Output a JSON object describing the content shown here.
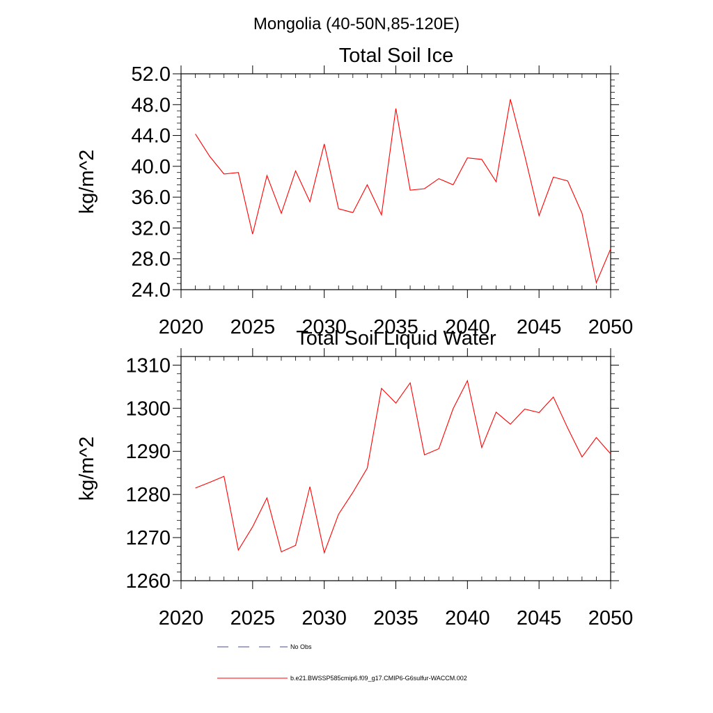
{
  "figure": {
    "suptitle": "Mongolia (40-50N,85-120E)"
  },
  "legend": {
    "items": [
      {
        "label": "No Obs",
        "style": "dashed",
        "color": "#4a4a8a"
      },
      {
        "label": "b.e21.BWSSP585cmip6.f09_g17.CMIP6-G6sulfur-WACCM.002",
        "style": "solid",
        "color": "#ff0000"
      }
    ]
  },
  "chart_data": [
    {
      "type": "line",
      "title": "Total Soil Ice",
      "xlabel": "",
      "ylabel": "kg/m^2",
      "xlim": [
        2020,
        2050
      ],
      "ylim": [
        24,
        52
      ],
      "xticks": [
        2020,
        2025,
        2030,
        2035,
        2040,
        2045,
        2050
      ],
      "yticks": [
        24,
        28,
        32,
        36,
        40,
        44,
        48,
        52
      ],
      "ytick_labels": [
        "24.0",
        "28.0",
        "32.0",
        "36.0",
        "40.0",
        "44.0",
        "48.0",
        "52.0"
      ],
      "x_minor_step": 1,
      "y_minor_step": 0.8,
      "series": [
        {
          "color": "#ff0000",
          "x": [
            2021,
            2022,
            2023,
            2024,
            2025,
            2026,
            2027,
            2028,
            2029,
            2030,
            2031,
            2032,
            2033,
            2034,
            2035,
            2036,
            2037,
            2038,
            2039,
            2040,
            2041,
            2042,
            2043,
            2044,
            2045,
            2046,
            2047,
            2048,
            2049,
            2050
          ],
          "values": [
            44.2,
            41.3,
            39.0,
            39.2,
            31.2,
            38.8,
            33.9,
            39.4,
            35.4,
            42.9,
            34.5,
            34.0,
            37.6,
            33.7,
            47.5,
            36.9,
            37.1,
            38.4,
            37.6,
            41.1,
            40.9,
            38.0,
            48.7,
            41.4,
            33.6,
            38.6,
            38.1,
            33.9,
            24.9,
            29.3
          ]
        }
      ]
    },
    {
      "type": "line",
      "title": "Total Soil Liquid Water",
      "xlabel": "",
      "ylabel": "kg/m^2",
      "xlim": [
        2020,
        2050
      ],
      "ylim": [
        1260,
        1312
      ],
      "xticks": [
        2020,
        2025,
        2030,
        2035,
        2040,
        2045,
        2050
      ],
      "yticks": [
        1260,
        1270,
        1280,
        1290,
        1300,
        1310
      ],
      "ytick_labels": [
        "1260",
        "1270",
        "1280",
        "1290",
        "1300",
        "1310"
      ],
      "x_minor_step": 1,
      "y_minor_step": 2,
      "series": [
        {
          "color": "#ff0000",
          "x": [
            2021,
            2022,
            2023,
            2024,
            2025,
            2026,
            2027,
            2028,
            2029,
            2030,
            2031,
            2032,
            2033,
            2034,
            2035,
            2036,
            2037,
            2038,
            2039,
            2040,
            2041,
            2042,
            2043,
            2044,
            2045,
            2046,
            2047,
            2048,
            2049,
            2050
          ],
          "values": [
            1281.5,
            1282.8,
            1284.2,
            1267.1,
            1272.5,
            1279.2,
            1266.7,
            1268.2,
            1281.8,
            1266.5,
            1275.4,
            1280.5,
            1286.1,
            1304.6,
            1301.2,
            1305.9,
            1289.2,
            1290.6,
            1299.9,
            1306.4,
            1290.9,
            1299.1,
            1296.3,
            1299.8,
            1299.0,
            1302.6,
            1295.4,
            1288.7,
            1293.2,
            1289.4
          ]
        }
      ]
    }
  ]
}
